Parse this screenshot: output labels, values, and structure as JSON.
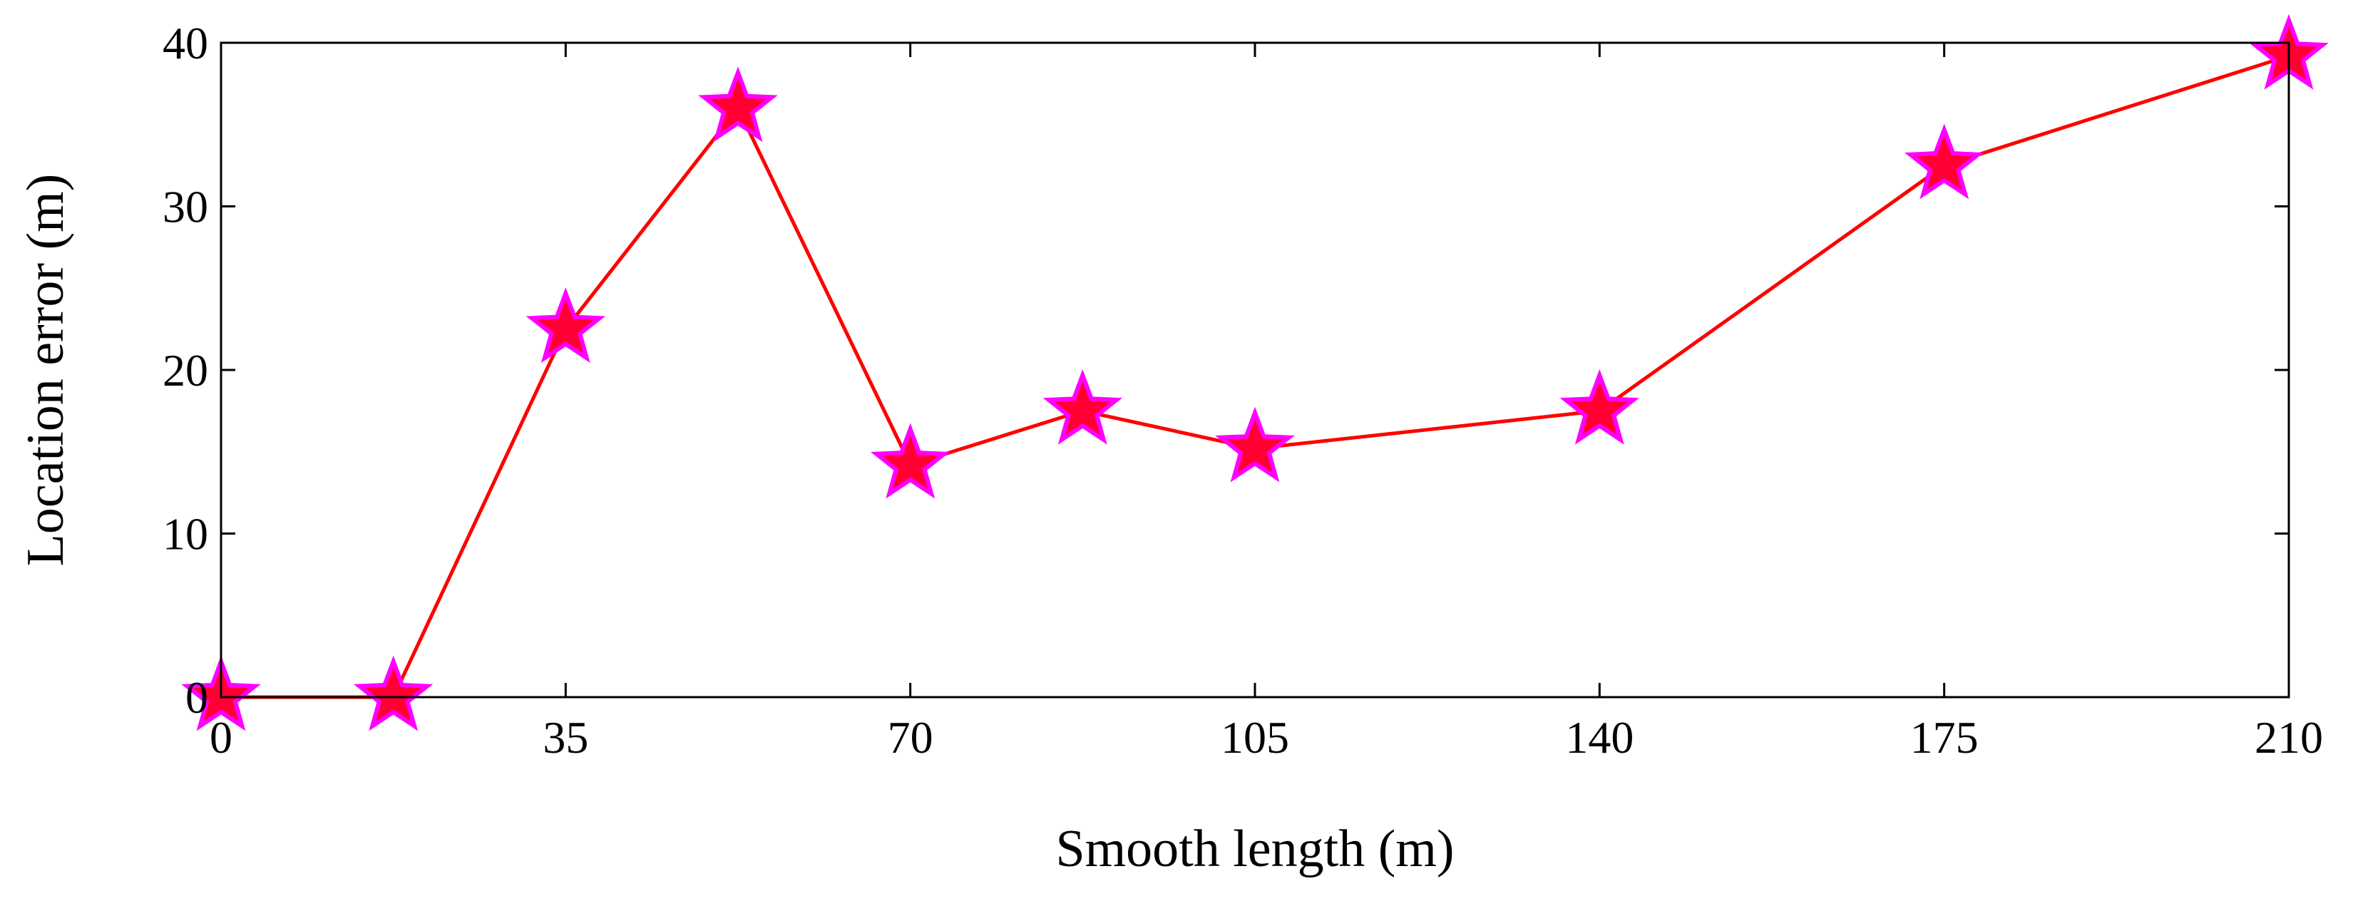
{
  "chart_data": {
    "type": "line",
    "title": "",
    "xlabel": "Smooth length (m)",
    "ylabel": "Location error (m)",
    "xlim": [
      0,
      210
    ],
    "ylim": [
      0,
      40
    ],
    "xticks": [
      0,
      35,
      70,
      105,
      140,
      175,
      210
    ],
    "yticks": [
      0,
      10,
      20,
      30,
      40
    ],
    "grid": false,
    "legend": "none",
    "series": [
      {
        "name": "Location error",
        "line_color": "#ff0000",
        "marker": "star",
        "marker_face": "#ff0033",
        "marker_edge": "#ff00ff",
        "x": [
          0,
          17.5,
          35,
          52.5,
          70,
          87.5,
          105,
          140,
          175,
          210
        ],
        "y": [
          0,
          0,
          22.5,
          36,
          14.2,
          17.5,
          15.2,
          17.5,
          32.5,
          39.2
        ]
      }
    ]
  }
}
